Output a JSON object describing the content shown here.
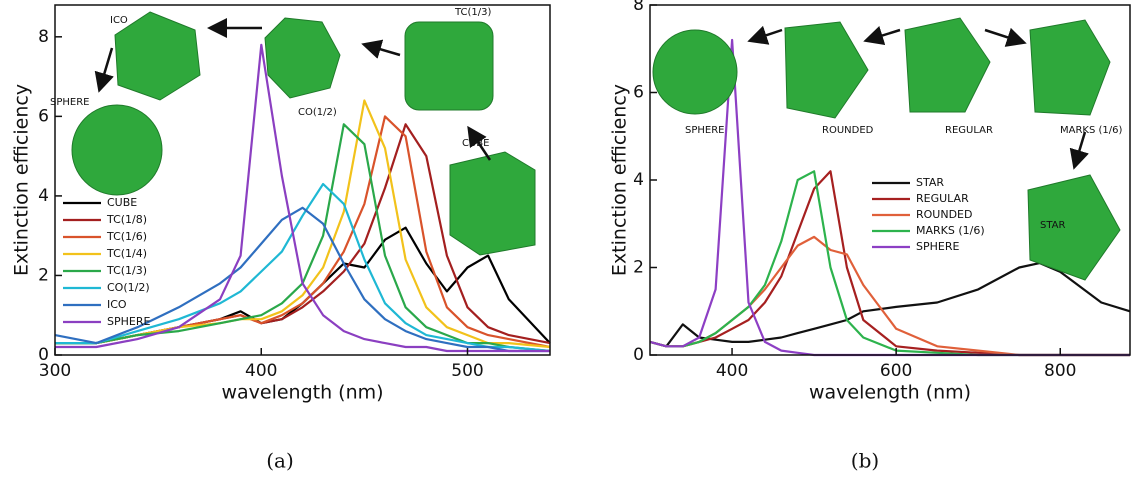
{
  "chart_data": [
    {
      "type": "line",
      "caption": "(a)",
      "x_label": "wavelength (nm)",
      "y_label": "Extinction efficiency",
      "xlim": [
        300,
        540
      ],
      "ylim": [
        0,
        8.8
      ],
      "xticks": [
        300,
        400,
        500
      ],
      "yticks": [
        0,
        2,
        4,
        6,
        8
      ],
      "legend": "lower-left",
      "x": [
        300,
        320,
        340,
        360,
        380,
        390,
        400,
        410,
        420,
        430,
        440,
        450,
        460,
        470,
        480,
        490,
        500,
        510,
        520,
        540
      ],
      "series": [
        {
          "name": "CUBE",
          "color": "#000000",
          "values": [
            0.3,
            0.3,
            0.5,
            0.7,
            0.9,
            1.1,
            0.8,
            0.9,
            1.3,
            1.8,
            2.3,
            2.2,
            2.9,
            3.2,
            2.3,
            1.6,
            2.2,
            2.5,
            1.4,
            0.3
          ]
        },
        {
          "name": "TC(1/8)",
          "color": "#a31f1f",
          "values": [
            0.3,
            0.3,
            0.5,
            0.7,
            0.9,
            1.0,
            0.8,
            0.9,
            1.2,
            1.6,
            2.1,
            2.8,
            4.2,
            5.8,
            5.0,
            2.5,
            1.2,
            0.7,
            0.5,
            0.3
          ]
        },
        {
          "name": "TC(1/6)",
          "color": "#d9532b",
          "values": [
            0.3,
            0.3,
            0.5,
            0.7,
            0.9,
            1.0,
            0.8,
            1.0,
            1.3,
            1.8,
            2.6,
            3.8,
            6.0,
            5.5,
            2.6,
            1.2,
            0.7,
            0.5,
            0.4,
            0.2
          ]
        },
        {
          "name": "TC(1/4)",
          "color": "#f2c21b",
          "values": [
            0.3,
            0.3,
            0.5,
            0.7,
            0.8,
            0.9,
            0.9,
            1.1,
            1.5,
            2.2,
            3.6,
            6.4,
            5.2,
            2.4,
            1.2,
            0.7,
            0.5,
            0.3,
            0.3,
            0.2
          ]
        },
        {
          "name": "TC(1/3)",
          "color": "#2aa84a",
          "values": [
            0.3,
            0.3,
            0.5,
            0.6,
            0.8,
            0.9,
            1.0,
            1.3,
            1.8,
            3.0,
            5.8,
            5.3,
            2.5,
            1.2,
            0.7,
            0.5,
            0.3,
            0.3,
            0.2,
            0.1
          ]
        },
        {
          "name": "CO(1/2)",
          "color": "#1fb8d4",
          "values": [
            0.3,
            0.3,
            0.6,
            0.9,
            1.3,
            1.6,
            2.1,
            2.6,
            3.5,
            4.3,
            3.8,
            2.4,
            1.3,
            0.8,
            0.5,
            0.4,
            0.3,
            0.2,
            0.2,
            0.1
          ]
        },
        {
          "name": "ICO",
          "color": "#2f6fc0",
          "values": [
            0.5,
            0.3,
            0.7,
            1.2,
            1.8,
            2.2,
            2.8,
            3.4,
            3.7,
            3.3,
            2.3,
            1.4,
            0.9,
            0.6,
            0.4,
            0.3,
            0.2,
            0.2,
            0.1,
            0.1
          ]
        },
        {
          "name": "SPHERE",
          "color": "#8b3fc1",
          "values": [
            0.2,
            0.2,
            0.4,
            0.7,
            1.4,
            2.5,
            7.8,
            4.5,
            1.8,
            1.0,
            0.6,
            0.4,
            0.3,
            0.2,
            0.2,
            0.1,
            0.1,
            0.1,
            0.1,
            0.1
          ]
        }
      ],
      "annotations": [
        "ICO",
        "SPHERE",
        "CO(1/2)",
        "TC(1/3)",
        "CUBE"
      ]
    },
    {
      "type": "line",
      "caption": "(b)",
      "x_label": "wavelength (nm)",
      "y_label": "Extinction efficiency",
      "xlim": [
        300,
        885
      ],
      "ylim": [
        0,
        8
      ],
      "xticks": [
        400,
        600,
        800
      ],
      "yticks": [
        0,
        2,
        4,
        6,
        8
      ],
      "legend": "center-right",
      "x": [
        300,
        320,
        340,
        360,
        380,
        400,
        420,
        440,
        460,
        480,
        500,
        520,
        540,
        560,
        600,
        650,
        700,
        750,
        775,
        800,
        850,
        885
      ],
      "series": [
        {
          "name": "STAR",
          "color": "#111111",
          "values": [
            0.3,
            0.2,
            0.7,
            0.4,
            0.35,
            0.3,
            0.3,
            0.35,
            0.4,
            0.5,
            0.6,
            0.7,
            0.8,
            1.0,
            1.1,
            1.2,
            1.5,
            2.0,
            2.1,
            1.9,
            1.2,
            1.0
          ]
        },
        {
          "name": "REGULAR",
          "color": "#a62020",
          "values": [
            0.3,
            0.2,
            0.2,
            0.3,
            0.4,
            0.6,
            0.8,
            1.2,
            1.8,
            2.8,
            3.8,
            4.2,
            2.0,
            0.8,
            0.2,
            0.1,
            0.05,
            0,
            0,
            0,
            0,
            0
          ]
        },
        {
          "name": "ROUNDED",
          "color": "#e0603a",
          "values": [
            0.3,
            0.2,
            0.2,
            0.3,
            0.5,
            0.8,
            1.1,
            1.5,
            2.0,
            2.5,
            2.7,
            2.4,
            2.3,
            1.6,
            0.6,
            0.2,
            0.1,
            0,
            0,
            0,
            0,
            0
          ]
        },
        {
          "name": "MARKS (1/6)",
          "color": "#2db34d",
          "values": [
            0.3,
            0.2,
            0.2,
            0.3,
            0.5,
            0.8,
            1.1,
            1.6,
            2.6,
            4.0,
            4.2,
            2.0,
            0.8,
            0.4,
            0.1,
            0.05,
            0,
            0,
            0,
            0,
            0,
            0
          ]
        },
        {
          "name": "SPHERE",
          "color": "#8d3fc4",
          "values": [
            0.3,
            0.2,
            0.2,
            0.4,
            1.5,
            7.2,
            1.2,
            0.3,
            0.1,
            0.05,
            0,
            0,
            0,
            0,
            0,
            0,
            0,
            0,
            0,
            0,
            0,
            0
          ]
        }
      ],
      "annotations": [
        "SPHERE",
        "ROUNDED",
        "REGULAR",
        "MARKS (1/6)",
        "STAR"
      ]
    }
  ]
}
